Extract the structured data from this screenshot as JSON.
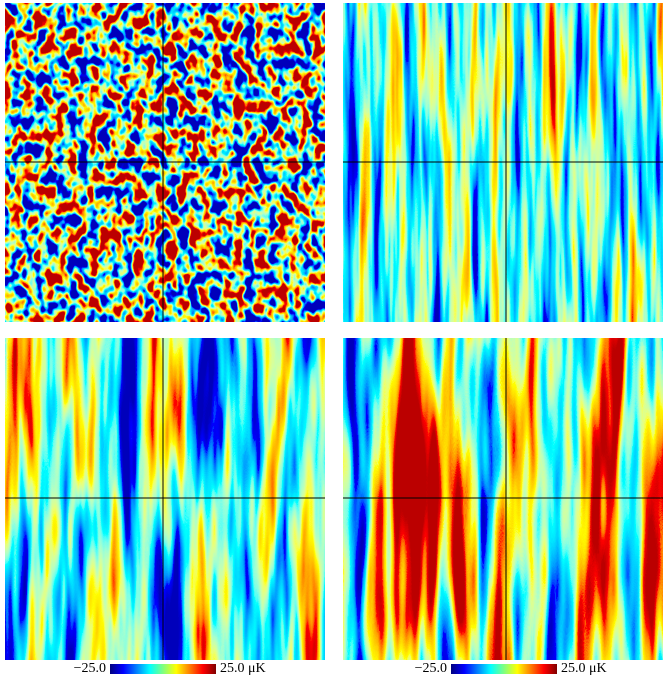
{
  "colorbars": [
    {
      "min_label": "−25.0",
      "max_label": "25.0 μK"
    },
    {
      "min_label": "−25.0",
      "max_label": "25.0 μK"
    }
  ]
}
